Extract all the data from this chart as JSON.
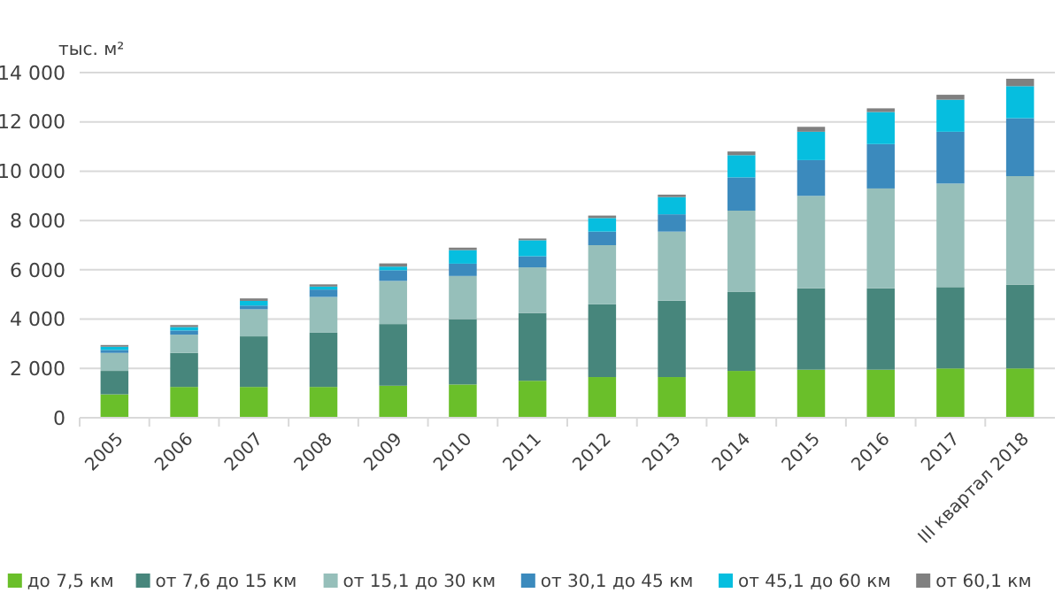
{
  "chart_data": {
    "type": "bar",
    "stacked": true,
    "ylabel": "тыс. м²",
    "categories": [
      "2005",
      "2006",
      "2007",
      "2008",
      "2009",
      "2010",
      "2011",
      "2012",
      "2013",
      "2014",
      "2015",
      "2016",
      "2017",
      "III квартал 2018"
    ],
    "series": [
      {
        "name": "до 7,5 км",
        "color": "#6abf2a",
        "values": [
          950,
          1250,
          1250,
          1250,
          1300,
          1350,
          1500,
          1650,
          1650,
          1900,
          1950,
          1950,
          2000,
          2000
        ]
      },
      {
        "name": "от 7,6 до 15 км",
        "color": "#47867c",
        "values": [
          950,
          1380,
          2050,
          2200,
          2500,
          2650,
          2750,
          2950,
          3100,
          3200,
          3300,
          3300,
          3300,
          3400
        ]
      },
      {
        "name": "от 15,1 до 30 км",
        "color": "#96bfba",
        "values": [
          730,
          740,
          1100,
          1450,
          1750,
          1750,
          1850,
          2400,
          2800,
          3300,
          3750,
          4050,
          4200,
          4400
        ]
      },
      {
        "name": "от 30,1 до 45 км",
        "color": "#3b8abd",
        "values": [
          120,
          170,
          150,
          300,
          430,
          500,
          450,
          550,
          700,
          1350,
          1450,
          1800,
          2100,
          2350
        ]
      },
      {
        "name": "от 45,1 до 60 км",
        "color": "#06bedf",
        "values": [
          130,
          140,
          190,
          120,
          150,
          550,
          650,
          550,
          700,
          900,
          1150,
          1300,
          1300,
          1300
        ]
      },
      {
        "name": "от 60,1 км",
        "color": "#808080",
        "values": [
          70,
          80,
          100,
          90,
          130,
          100,
          70,
          100,
          100,
          150,
          200,
          150,
          200,
          300
        ]
      }
    ],
    "ylim": [
      0,
      14000
    ],
    "yticks": [
      0,
      {
        "value": 2000,
        "label": "2 000"
      },
      {
        "value": 4000,
        "label": "4 000"
      },
      {
        "value": 6000,
        "label": "6 000"
      },
      {
        "value": 8000,
        "label": "8 000"
      },
      {
        "value": 10000,
        "label": "10 000"
      },
      {
        "value": 12000,
        "label": "12 000"
      },
      {
        "value": 14000,
        "label": "14 000"
      }
    ],
    "grid": "y",
    "legend": "bottom"
  }
}
